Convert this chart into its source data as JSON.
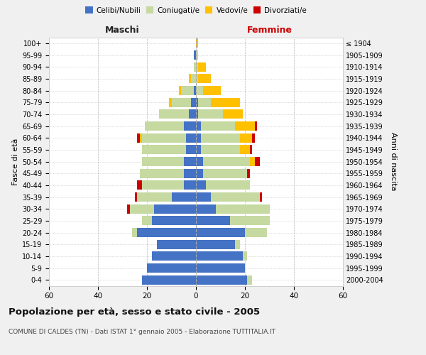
{
  "age_groups": [
    "0-4",
    "5-9",
    "10-14",
    "15-19",
    "20-24",
    "25-29",
    "30-34",
    "35-39",
    "40-44",
    "45-49",
    "50-54",
    "55-59",
    "60-64",
    "65-69",
    "70-74",
    "75-79",
    "80-84",
    "85-89",
    "90-94",
    "95-99",
    "100+"
  ],
  "birth_years": [
    "2000-2004",
    "1995-1999",
    "1990-1994",
    "1985-1989",
    "1980-1984",
    "1975-1979",
    "1970-1974",
    "1965-1969",
    "1960-1964",
    "1955-1959",
    "1950-1954",
    "1945-1949",
    "1940-1944",
    "1935-1939",
    "1930-1934",
    "1925-1929",
    "1920-1924",
    "1915-1919",
    "1910-1914",
    "1905-1909",
    "≤ 1904"
  ],
  "male": {
    "celibi": [
      22,
      20,
      18,
      16,
      24,
      18,
      17,
      10,
      5,
      5,
      5,
      4,
      4,
      5,
      3,
      2,
      1,
      0,
      0,
      1,
      0
    ],
    "coniugati": [
      0,
      0,
      0,
      0,
      2,
      4,
      10,
      14,
      17,
      18,
      17,
      18,
      18,
      16,
      12,
      8,
      5,
      2,
      1,
      0,
      0
    ],
    "vedovi": [
      0,
      0,
      0,
      0,
      0,
      0,
      0,
      0,
      0,
      0,
      0,
      0,
      1,
      0,
      0,
      1,
      1,
      1,
      0,
      0,
      0
    ],
    "divorziati": [
      0,
      0,
      0,
      0,
      0,
      0,
      1,
      1,
      2,
      0,
      0,
      0,
      1,
      0,
      0,
      0,
      0,
      0,
      0,
      0,
      0
    ]
  },
  "female": {
    "nubili": [
      21,
      20,
      19,
      16,
      20,
      14,
      8,
      6,
      4,
      3,
      3,
      2,
      2,
      2,
      1,
      1,
      0,
      0,
      0,
      0,
      0
    ],
    "coniugate": [
      2,
      0,
      2,
      2,
      9,
      16,
      22,
      20,
      18,
      18,
      19,
      16,
      16,
      14,
      10,
      5,
      3,
      1,
      1,
      1,
      0
    ],
    "vedove": [
      0,
      0,
      0,
      0,
      0,
      0,
      0,
      0,
      0,
      0,
      2,
      4,
      5,
      8,
      8,
      12,
      7,
      5,
      3,
      0,
      1
    ],
    "divorziate": [
      0,
      0,
      0,
      0,
      0,
      0,
      0,
      1,
      0,
      1,
      2,
      1,
      1,
      1,
      0,
      0,
      0,
      0,
      0,
      0,
      0
    ]
  },
  "colors": {
    "celibi_nubili": "#4472c4",
    "coniugati": "#c5d9a0",
    "vedovi": "#ffc000",
    "divorziati": "#cc0000"
  },
  "title": "Popolazione per età, sesso e stato civile - 2005",
  "subtitle": "COMUNE DI CALDES (TN) - Dati ISTAT 1° gennaio 2005 - Elaborazione TUTTITALIA.IT",
  "xlabel_left": "Maschi",
  "xlabel_right": "Femmine",
  "ylabel_left": "Fasce di età",
  "ylabel_right": "Anni di nascita",
  "xlim": 60,
  "bg_color": "#f0f0f0",
  "plot_bg_color": "#ffffff"
}
